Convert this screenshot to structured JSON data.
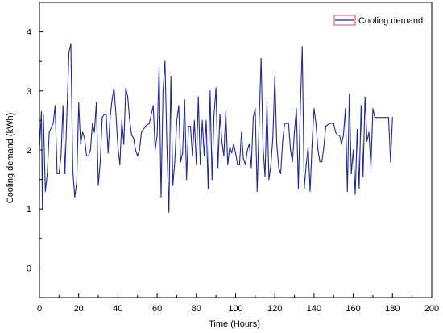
{
  "chart_data": {
    "type": "line",
    "title": "",
    "xlabel": "Time (Hours)",
    "ylabel": "Cooling demand  (kWh)",
    "xlim": [
      0,
      200
    ],
    "ylim": [
      -0.5,
      4.5
    ],
    "xticks": [
      "0",
      "20",
      "40",
      "60",
      "80",
      "100",
      "120",
      "140",
      "160",
      "180",
      "200"
    ],
    "yticks": [
      "0",
      "1",
      "2",
      "3",
      "4"
    ],
    "grid": false,
    "legend_position": "top-right",
    "colors": {
      "line": "#1f2a8c",
      "legend_box_border": "#e0407a",
      "axis": "#000000"
    },
    "series": [
      {
        "name": "Cooling demand",
        "points": [
          [
            0,
            2.0
          ],
          [
            1,
            2.65
          ],
          [
            1.5,
            1.0
          ],
          [
            2,
            2.6
          ],
          [
            3,
            1.3
          ],
          [
            4,
            1.6
          ],
          [
            5,
            2.3
          ],
          [
            7,
            2.45
          ],
          [
            8,
            2.75
          ],
          [
            9,
            1.6
          ],
          [
            10,
            1.6
          ],
          [
            11,
            1.9
          ],
          [
            12,
            2.75
          ],
          [
            13,
            1.6
          ],
          [
            15,
            3.65
          ],
          [
            16,
            3.8
          ],
          [
            17,
            1.65
          ],
          [
            18,
            1.2
          ],
          [
            19,
            1.45
          ],
          [
            20,
            2.8
          ],
          [
            21,
            2.1
          ],
          [
            22,
            2.3
          ],
          [
            23,
            2.2
          ],
          [
            24,
            1.9
          ],
          [
            25,
            1.9
          ],
          [
            26,
            2.0
          ],
          [
            27,
            2.45
          ],
          [
            28,
            2.3
          ],
          [
            29,
            2.8
          ],
          [
            30,
            1.4
          ],
          [
            31,
            1.8
          ],
          [
            32,
            2.55
          ],
          [
            33,
            2.6
          ],
          [
            34,
            2.6
          ],
          [
            35,
            1.95
          ],
          [
            36,
            2.55
          ],
          [
            37,
            2.85
          ],
          [
            38,
            3.05
          ],
          [
            39,
            2.6
          ],
          [
            40,
            2.05
          ],
          [
            41,
            1.75
          ],
          [
            42,
            2.5
          ],
          [
            43,
            2.1
          ],
          [
            44,
            3.05
          ],
          [
            45,
            2.9
          ],
          [
            46,
            2.5
          ],
          [
            47,
            2.25
          ],
          [
            48,
            2.2
          ],
          [
            49,
            2.0
          ],
          [
            50,
            1.9
          ],
          [
            51,
            2.0
          ],
          [
            52,
            2.3
          ],
          [
            54,
            2.4
          ],
          [
            56,
            2.45
          ],
          [
            58,
            2.75
          ],
          [
            59,
            2.0
          ],
          [
            60,
            2.25
          ],
          [
            61,
            3.4
          ],
          [
            62,
            1.2
          ],
          [
            63,
            3.0
          ],
          [
            64,
            3.5
          ],
          [
            65,
            2.05
          ],
          [
            66,
            0.95
          ],
          [
            67,
            3.25
          ],
          [
            68,
            1.4
          ],
          [
            69,
            1.8
          ],
          [
            70,
            2.5
          ],
          [
            71,
            2.75
          ],
          [
            72,
            1.8
          ],
          [
            73,
            1.95
          ],
          [
            74,
            2.85
          ],
          [
            75,
            1.5
          ],
          [
            76,
            2.4
          ],
          [
            77,
            2.4
          ],
          [
            78,
            1.9
          ],
          [
            79,
            2.5
          ],
          [
            80,
            1.75
          ],
          [
            81,
            2.9
          ],
          [
            82,
            1.75
          ],
          [
            83,
            2.5
          ],
          [
            84,
            1.9
          ],
          [
            85,
            2.5
          ],
          [
            86,
            1.35
          ],
          [
            87,
            3.0
          ],
          [
            88,
            1.5
          ],
          [
            89,
            2.6
          ],
          [
            90,
            3.05
          ],
          [
            91,
            1.7
          ],
          [
            92,
            2.6
          ],
          [
            93,
            2.15
          ],
          [
            94,
            1.9
          ],
          [
            95,
            2.65
          ],
          [
            96,
            1.75
          ],
          [
            97,
            2.05
          ],
          [
            98,
            1.95
          ],
          [
            99,
            2.1
          ],
          [
            100,
            1.95
          ],
          [
            101,
            1.75
          ],
          [
            102,
            1.75
          ],
          [
            103,
            2.3
          ],
          [
            104,
            1.85
          ],
          [
            105,
            1.75
          ],
          [
            106,
            2.0
          ],
          [
            107,
            2.1
          ],
          [
            108,
            1.7
          ],
          [
            109,
            2.55
          ],
          [
            110,
            2.7
          ],
          [
            111,
            1.3
          ],
          [
            112,
            2.45
          ],
          [
            113,
            3.55
          ],
          [
            114,
            2.05
          ],
          [
            115,
            1.55
          ],
          [
            116,
            2.8
          ],
          [
            117,
            1.5
          ],
          [
            118,
            1.75
          ],
          [
            119,
            2.2
          ],
          [
            120,
            3.25
          ],
          [
            121,
            2.1
          ],
          [
            122,
            1.7
          ],
          [
            123,
            1.6
          ],
          [
            124,
            2.15
          ],
          [
            125,
            2.45
          ],
          [
            127,
            2.45
          ],
          [
            128,
            2.0
          ],
          [
            129,
            1.8
          ],
          [
            130,
            2.3
          ],
          [
            131,
            2.7
          ],
          [
            132,
            1.35
          ],
          [
            133,
            2.7
          ],
          [
            134,
            3.75
          ],
          [
            135,
            1.35
          ],
          [
            136,
            1.75
          ],
          [
            137,
            2.05
          ],
          [
            138,
            1.3
          ],
          [
            139,
            2.1
          ],
          [
            140,
            2.7
          ],
          [
            141,
            2.45
          ],
          [
            142,
            2.0
          ],
          [
            143,
            1.8
          ],
          [
            144,
            1.8
          ],
          [
            145,
            2.05
          ],
          [
            146,
            2.4
          ],
          [
            148,
            2.45
          ],
          [
            150,
            2.45
          ],
          [
            151,
            2.3
          ],
          [
            152,
            2.25
          ],
          [
            153,
            2.25
          ],
          [
            154,
            2.1
          ],
          [
            155,
            2.25
          ],
          [
            156,
            2.7
          ],
          [
            157,
            1.3
          ],
          [
            158,
            2.95
          ],
          [
            159,
            1.6
          ],
          [
            160,
            2.0
          ],
          [
            161,
            1.25
          ],
          [
            162,
            2.35
          ],
          [
            163,
            1.35
          ],
          [
            164,
            2.75
          ],
          [
            165,
            1.55
          ],
          [
            166,
            2.9
          ],
          [
            167,
            2.15
          ],
          [
            168,
            2.3
          ],
          [
            169,
            1.7
          ],
          [
            170,
            2.7
          ],
          [
            171,
            2.55
          ],
          [
            172,
            2.55
          ],
          [
            174,
            2.55
          ],
          [
            176,
            2.55
          ],
          [
            178,
            2.55
          ],
          [
            179,
            1.8
          ],
          [
            180,
            2.55
          ]
        ]
      }
    ]
  }
}
